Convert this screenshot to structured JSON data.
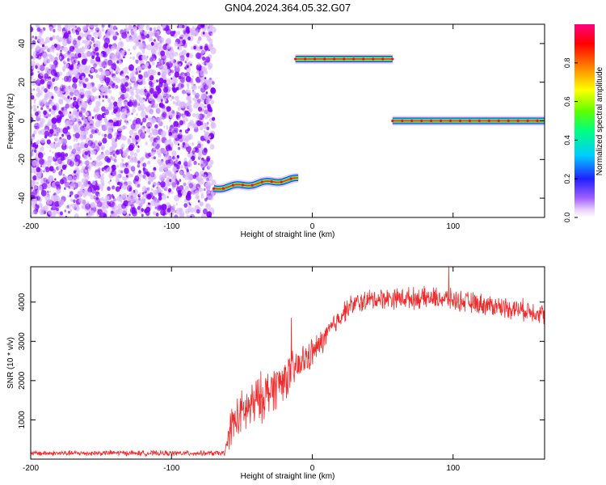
{
  "figure_title": "GN04.2024.364.05.32.G07",
  "colors": {
    "snr_line": "#ee2c2c",
    "noise": "#7f00ff",
    "track_core": "#ff2020",
    "track_mid": "#2ee84a",
    "track_edge": "#1a2dff"
  },
  "chart_data": [
    {
      "type": "heatmap",
      "title": "",
      "xlabel": "Height of straight line (km)",
      "ylabel": "Frequency (Hz)",
      "xlim": [
        -200,
        165
      ],
      "ylim": [
        -50,
        50
      ],
      "x_ticks": [
        "-200",
        "-100",
        "0",
        "100"
      ],
      "y_ticks": [
        "-40",
        "-20",
        "0",
        "20",
        "40"
      ],
      "grid": false,
      "colorbar": {
        "label": "Normalized spectral amplitude",
        "range": [
          0,
          1
        ],
        "ticks": [
          "0.0",
          "0.2",
          "0.4",
          "0.6",
          "0.8"
        ],
        "colormap": "rainbow (magenta-blue-cyan-green-yellow-red)"
      },
      "noise_region": {
        "x_range": [
          -200,
          -70
        ],
        "y_range": [
          -50,
          50
        ],
        "amplitude": 0.1
      },
      "tracks": [
        {
          "x_range": [
            -70,
            -10
          ],
          "y_start": -35,
          "y_end": -30,
          "amplitude": 1.0
        },
        {
          "x_range": [
            -12,
            57
          ],
          "y_start": 32,
          "y_end": 32,
          "amplitude": 1.0
        },
        {
          "x_range": [
            57,
            165
          ],
          "y_start": 0,
          "y_end": 0,
          "amplitude": 1.0
        }
      ]
    },
    {
      "type": "line",
      "title": "",
      "xlabel": "Height of straight line (km)",
      "ylabel": "SNR (10 * v/v)",
      "xlim": [
        -200,
        165
      ],
      "ylim": [
        0,
        4900
      ],
      "x_ticks": [
        "-200",
        "-100",
        "0",
        "100"
      ],
      "y_ticks": [
        "1000",
        "2000",
        "3000",
        "4000"
      ],
      "grid": false,
      "series": [
        {
          "x": [
            -200,
            -180,
            -160,
            -140,
            -120,
            -100,
            -80,
            -62,
            -58,
            -50,
            -45,
            -40,
            -35,
            -30,
            -25,
            -20,
            -15,
            -10,
            -5,
            0,
            5,
            10,
            15,
            20,
            25,
            30,
            40,
            50,
            60,
            70,
            80,
            90,
            100,
            110,
            120,
            130,
            140,
            150,
            160,
            165
          ],
          "values": [
            150,
            150,
            150,
            160,
            150,
            150,
            150,
            150,
            850,
            1150,
            1300,
            1450,
            1600,
            1750,
            1900,
            2050,
            2200,
            2350,
            2550,
            2700,
            2900,
            3150,
            3400,
            3650,
            3850,
            3950,
            4050,
            4100,
            4100,
            4100,
            4100,
            4100,
            4050,
            4000,
            3950,
            3900,
            3850,
            3800,
            3750,
            3700
          ],
          "noise_amplitude": [
            80,
            80,
            80,
            80,
            80,
            80,
            80,
            80,
            600,
            700,
            750,
            750,
            750,
            700,
            700,
            650,
            600,
            550,
            500,
            450,
            400,
            380,
            350,
            330,
            320,
            320,
            320,
            320,
            320,
            320,
            320,
            320,
            320,
            320,
            320,
            320,
            320,
            320,
            320,
            320
          ],
          "spikes": [
            {
              "x": -15,
              "y": 3600
            },
            {
              "x": 97,
              "y": 4900
            }
          ]
        }
      ]
    }
  ]
}
